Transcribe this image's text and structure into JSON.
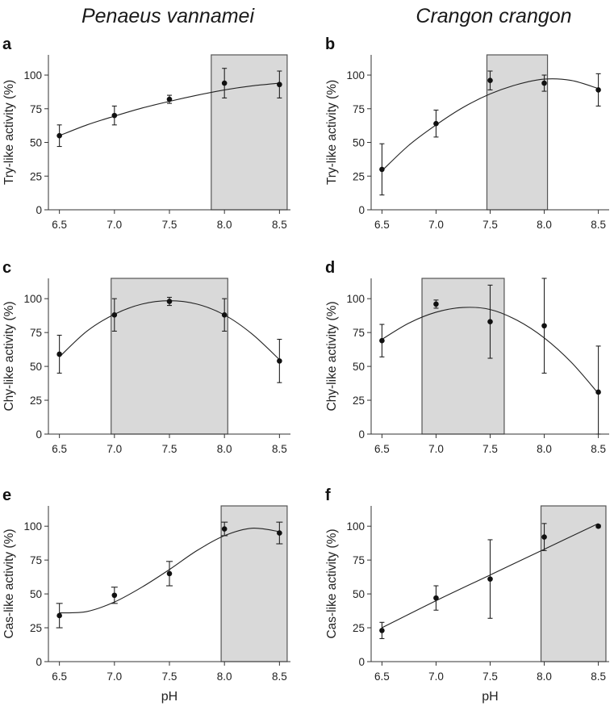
{
  "figure": {
    "col_titles": [
      "Penaeus vannamei",
      "Crangon crangon"
    ]
  },
  "chart_data": [
    {
      "panel": "a",
      "type": "scatter",
      "title": "",
      "ylabel": "Try-like activity (%)",
      "xlabel": "",
      "x": [
        6.5,
        7.0,
        7.5,
        8.0,
        8.5
      ],
      "y": [
        55,
        70,
        82,
        94,
        93
      ],
      "err": [
        8,
        7,
        3,
        11,
        10
      ],
      "fit": [
        [
          6.5,
          55
        ],
        [
          6.75,
          63
        ],
        [
          7.0,
          69.5
        ],
        [
          7.25,
          75.5
        ],
        [
          7.5,
          80.5
        ],
        [
          7.75,
          85
        ],
        [
          8.0,
          89
        ],
        [
          8.25,
          92
        ],
        [
          8.5,
          94
        ]
      ],
      "shade": [
        7.88,
        8.57
      ],
      "xticks": [
        "6.5",
        "7.0",
        "7.5",
        "8.0",
        "8.5"
      ],
      "yticks": [
        "0",
        "25",
        "50",
        "75",
        "100"
      ],
      "xlim": [
        6.4,
        8.6
      ],
      "ylim": [
        0,
        115
      ]
    },
    {
      "panel": "b",
      "type": "scatter",
      "title": "",
      "ylabel": "Try-like activity (%)",
      "xlabel": "",
      "x": [
        6.5,
        7.0,
        7.5,
        8.0,
        8.5
      ],
      "y": [
        30,
        64,
        96,
        94,
        89
      ],
      "err": [
        19,
        10,
        7,
        6,
        12
      ],
      "fit": [
        [
          6.5,
          29
        ],
        [
          6.75,
          48
        ],
        [
          7.0,
          63
        ],
        [
          7.25,
          76
        ],
        [
          7.5,
          86
        ],
        [
          7.75,
          93
        ],
        [
          8.0,
          97
        ],
        [
          8.25,
          96
        ],
        [
          8.5,
          90
        ]
      ],
      "shade": [
        7.47,
        8.03
      ],
      "xticks": [
        "6.5",
        "7.0",
        "7.5",
        "8.0",
        "8.5"
      ],
      "yticks": [
        "0",
        "25",
        "50",
        "75",
        "100"
      ],
      "xlim": [
        6.4,
        8.6
      ],
      "ylim": [
        0,
        115
      ]
    },
    {
      "panel": "c",
      "type": "scatter",
      "title": "",
      "ylabel": "Chy-like activity (%)",
      "xlabel": "",
      "x": [
        6.5,
        7.0,
        7.5,
        8.0,
        8.5
      ],
      "y": [
        59,
        88,
        98,
        88,
        54
      ],
      "err": [
        14,
        12,
        3,
        12,
        16
      ],
      "fit": [
        [
          6.5,
          57
        ],
        [
          6.75,
          76
        ],
        [
          7.0,
          88.5
        ],
        [
          7.25,
          96
        ],
        [
          7.5,
          98.5
        ],
        [
          7.75,
          96
        ],
        [
          8.0,
          88
        ],
        [
          8.25,
          74
        ],
        [
          8.5,
          55
        ]
      ],
      "shade": [
        6.97,
        8.03
      ],
      "xticks": [
        "6.5",
        "7.0",
        "7.5",
        "8.0",
        "8.5"
      ],
      "yticks": [
        "0",
        "25",
        "50",
        "75",
        "100"
      ],
      "xlim": [
        6.4,
        8.6
      ],
      "ylim": [
        0,
        115
      ]
    },
    {
      "panel": "d",
      "type": "scatter",
      "title": "",
      "ylabel": "Chy-like activity (%)",
      "xlabel": "",
      "x": [
        6.5,
        7.0,
        7.5,
        8.0,
        8.5
      ],
      "y": [
        69,
        96,
        83,
        80,
        31
      ],
      "err": [
        12,
        3,
        27,
        35,
        34
      ],
      "fit": [
        [
          6.5,
          70
        ],
        [
          6.75,
          82
        ],
        [
          7.0,
          90
        ],
        [
          7.25,
          93.5
        ],
        [
          7.5,
          92
        ],
        [
          7.75,
          84
        ],
        [
          8.0,
          71
        ],
        [
          8.25,
          53
        ],
        [
          8.5,
          30
        ]
      ],
      "shade": [
        6.87,
        7.63
      ],
      "xticks": [
        "6.5",
        "7.0",
        "7.5",
        "8.0",
        "8.5"
      ],
      "yticks": [
        "0",
        "25",
        "50",
        "75",
        "100"
      ],
      "xlim": [
        6.4,
        8.6
      ],
      "ylim": [
        0,
        115
      ]
    },
    {
      "panel": "e",
      "type": "scatter",
      "title": "",
      "ylabel": "Cas-like activity (%)",
      "xlabel": "pH",
      "x": [
        6.5,
        7.0,
        7.5,
        8.0,
        8.5
      ],
      "y": [
        34,
        49,
        65,
        98,
        95
      ],
      "err": [
        9,
        6,
        9,
        5,
        8
      ],
      "fit": [
        [
          6.5,
          36
        ],
        [
          6.75,
          37
        ],
        [
          7.0,
          44
        ],
        [
          7.25,
          55
        ],
        [
          7.5,
          68
        ],
        [
          7.75,
          82
        ],
        [
          8.0,
          93
        ],
        [
          8.25,
          98.5
        ],
        [
          8.5,
          96
        ]
      ],
      "shade": [
        7.97,
        8.57
      ],
      "xticks": [
        "6.5",
        "7.0",
        "7.5",
        "8.0",
        "8.5"
      ],
      "yticks": [
        "0",
        "25",
        "50",
        "75",
        "100"
      ],
      "xlim": [
        6.4,
        8.6
      ],
      "ylim": [
        0,
        115
      ]
    },
    {
      "panel": "f",
      "type": "scatter",
      "title": "",
      "ylabel": "Cas-like activity (%)",
      "xlabel": "pH",
      "x": [
        6.5,
        7.0,
        7.5,
        8.0,
        8.5
      ],
      "y": [
        23,
        47,
        61,
        92,
        100
      ],
      "err": [
        6,
        9,
        29,
        10,
        1
      ],
      "fit": [
        [
          6.5,
          25
        ],
        [
          7.0,
          45
        ],
        [
          7.5,
          64
        ],
        [
          8.0,
          83
        ],
        [
          8.5,
          102
        ]
      ],
      "shade": [
        7.97,
        8.57
      ],
      "xticks": [
        "6.5",
        "7.0",
        "7.5",
        "8.0",
        "8.5"
      ],
      "yticks": [
        "0",
        "25",
        "50",
        "75",
        "100"
      ],
      "xlim": [
        6.4,
        8.6
      ],
      "ylim": [
        0,
        115
      ]
    }
  ]
}
